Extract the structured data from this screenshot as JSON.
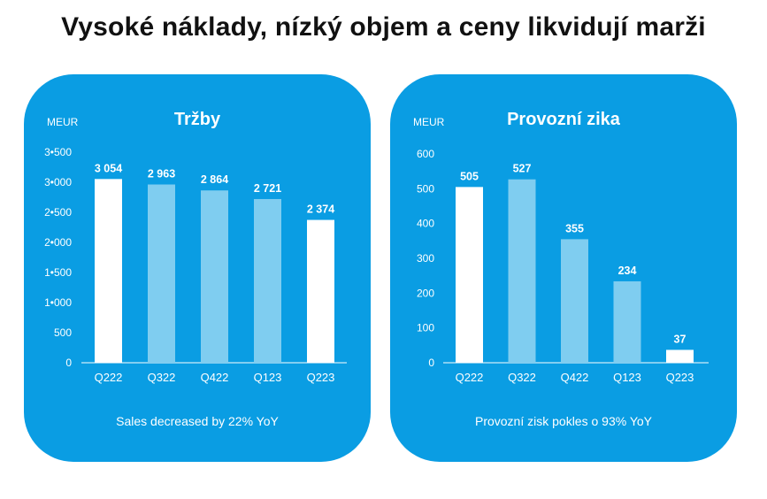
{
  "page": {
    "title": "Vysoké náklady, nízký objem a ceny likvidují marži"
  },
  "colors": {
    "panel": "#0a9de3",
    "bar_highlight": "#ffffff",
    "bar_normal": "#7fcdf0",
    "text": "#ffffff"
  },
  "chart_data": [
    {
      "type": "bar",
      "title": "Tržby",
      "unit": "MEUR",
      "caption": "Sales decreased by 22% YoY",
      "categories": [
        "Q222",
        "Q322",
        "Q422",
        "Q123",
        "Q223"
      ],
      "values": [
        3054,
        2963,
        2864,
        2721,
        2374
      ],
      "value_labels": [
        "3 054",
        "2 963",
        "2 864",
        "2 721",
        "2 374"
      ],
      "highlighted": [
        true,
        false,
        false,
        false,
        true
      ],
      "ylim": [
        0,
        3500
      ],
      "yticks": [
        0,
        500,
        1000,
        1500,
        2000,
        2500,
        3000,
        3500
      ],
      "ytick_labels": [
        "0",
        "500",
        "1•000",
        "1•500",
        "2•000",
        "2•500",
        "3•000",
        "3•500"
      ]
    },
    {
      "type": "bar",
      "title": "Provozní zika",
      "unit": "MEUR",
      "caption": "Provozní zisk pokles o 93% YoY",
      "categories": [
        "Q222",
        "Q322",
        "Q422",
        "Q123",
        "Q223"
      ],
      "values": [
        505,
        527,
        355,
        234,
        37
      ],
      "value_labels": [
        "505",
        "527",
        "355",
        "234",
        "37"
      ],
      "highlighted": [
        true,
        false,
        false,
        false,
        true
      ],
      "ylim": [
        0,
        600
      ],
      "yticks": [
        0,
        100,
        200,
        300,
        400,
        500,
        600
      ],
      "ytick_labels": [
        "0",
        "100",
        "200",
        "300",
        "400",
        "500",
        "600"
      ]
    }
  ]
}
